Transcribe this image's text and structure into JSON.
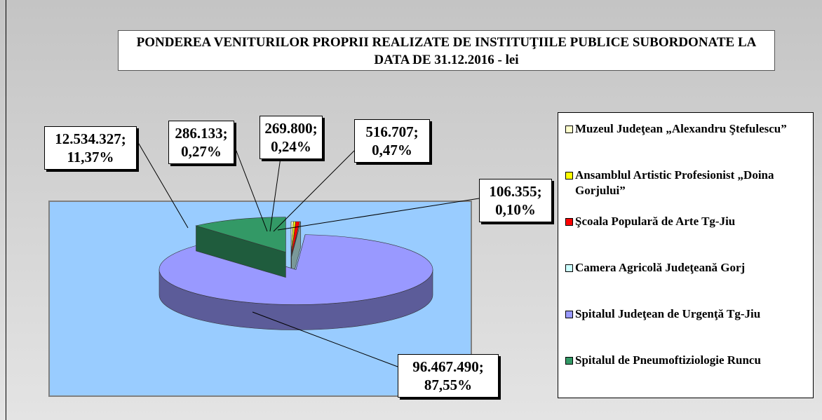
{
  "chart_data": {
    "type": "pie",
    "title": "PONDEREA VENITURILOR PROPRII REALIZATE DE INSTITUŢIILE PUBLICE SUBORDONATE LA DATA DE 31.12.2016 - lei",
    "categories": [
      "Muzeul Judeţean „Alexandru Ştefulescu”",
      "Ansamblul Artistic Profesionist „Doina Gorjului”",
      "Şcoala Populară de Arte Tg-Jiu",
      "Camera Agricolă Judeţeană Gorj",
      "Spitalul Judeţean de Urgenţă Tg-Jiu",
      "Spitalul de Pneumoftiziologie Runcu"
    ],
    "values": [
      286133,
      269800,
      516707,
      106355,
      96467490,
      12534327
    ],
    "value_labels": [
      "286.133; 0,27%",
      "269.800; 0,24%",
      "516.707; 0,47%",
      "106.355; 0,10%",
      "96.467.490; 87,55%",
      "12.534.327; 11,37%"
    ],
    "colors": [
      "#ffffcc",
      "#ffff00",
      "#ff0000",
      "#ccffff",
      "#9999ff",
      "#339966"
    ]
  }
}
